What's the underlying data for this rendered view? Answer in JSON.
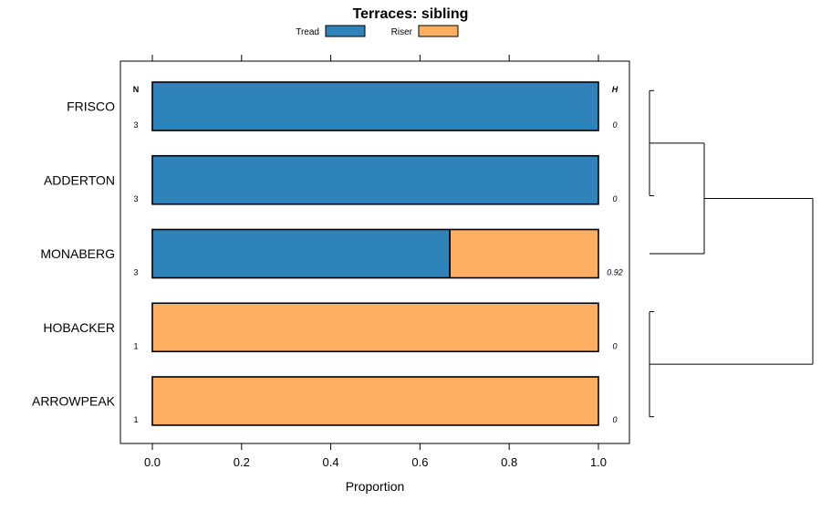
{
  "chart_data": {
    "type": "bar",
    "title": "Terraces: sibling",
    "xlabel": "Proportion",
    "ylabel": "",
    "xlim": [
      -0.07,
      1.07
    ],
    "xticks": [
      "0.0",
      "0.2",
      "0.4",
      "0.6",
      "0.8",
      "1.0"
    ],
    "legend_position": "top-center",
    "n_header": "N",
    "h_header": "H",
    "series": [
      {
        "name": "Tread",
        "color": "#2e83bb"
      },
      {
        "name": "Riser",
        "color": "#fdae61"
      }
    ],
    "categories": [
      "FRISCO",
      "ADDERTON",
      "MONABERG",
      "HOBACKER",
      "ARROWPEAK"
    ],
    "rows": [
      {
        "label": "FRISCO",
        "tread": 1.0,
        "riser": 0.0,
        "n": "3",
        "h": "0"
      },
      {
        "label": "ADDERTON",
        "tread": 1.0,
        "riser": 0.0,
        "n": "3",
        "h": "0"
      },
      {
        "label": "MONABERG",
        "tread": 0.667,
        "riser": 0.333,
        "n": "3",
        "h": "0.92"
      },
      {
        "label": "HOBACKER",
        "tread": 0.0,
        "riser": 1.0,
        "n": "1",
        "h": "0"
      },
      {
        "label": "ARROWPEAK",
        "tread": 0.0,
        "riser": 1.0,
        "n": "1",
        "h": "0"
      }
    ],
    "dendrogram": {
      "merges": [
        {
          "children": [
            "FRISCO",
            "ADDERTON"
          ],
          "height": 0.0
        },
        {
          "children": [
            "HOBACKER",
            "ARROWPEAK"
          ],
          "height": 0.0
        },
        {
          "children": [
            "FRISCO+ADDERTON",
            "MONABERG"
          ],
          "height": 0.33
        },
        {
          "children": [
            "FRISCO+ADDERTON+MONABERG",
            "HOBACKER+ARROWPEAK"
          ],
          "height": 1.0
        }
      ]
    }
  }
}
